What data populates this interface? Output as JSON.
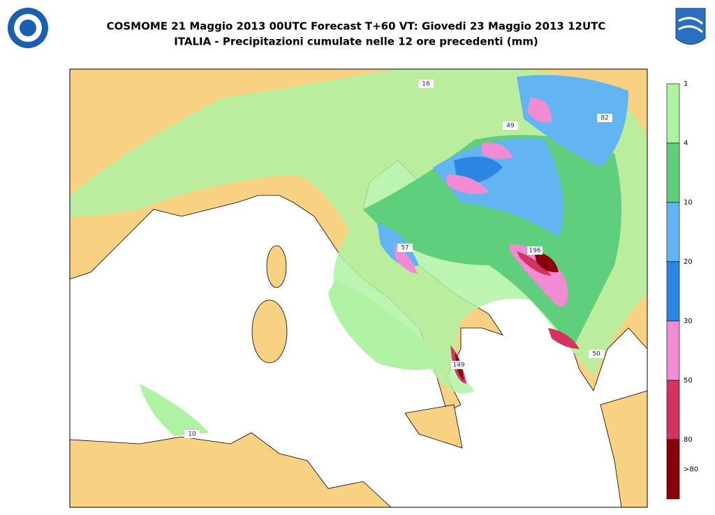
{
  "header": {
    "title_line1": "COSMOME 21 Maggio 2013 00UTC Forecast T+60 VT: Giovedi 23 Maggio 2013 12UTC",
    "title_line2": "ITALIA - Precipitazioni cumulate nelle 12 ore precedenti (mm)"
  },
  "legend": {
    "labels": [
      1,
      4,
      10,
      20,
      30,
      50,
      80,
      ">80"
    ],
    "colors": [
      "#b0f2a4",
      "#5fcf7d",
      "#62b5f2",
      "#2b86e3",
      "#f08bd4",
      "#d3345f",
      "#8a0008"
    ]
  },
  "map": {
    "labels": [
      16,
      49,
      82,
      57,
      196,
      149,
      50,
      10
    ]
  }
}
